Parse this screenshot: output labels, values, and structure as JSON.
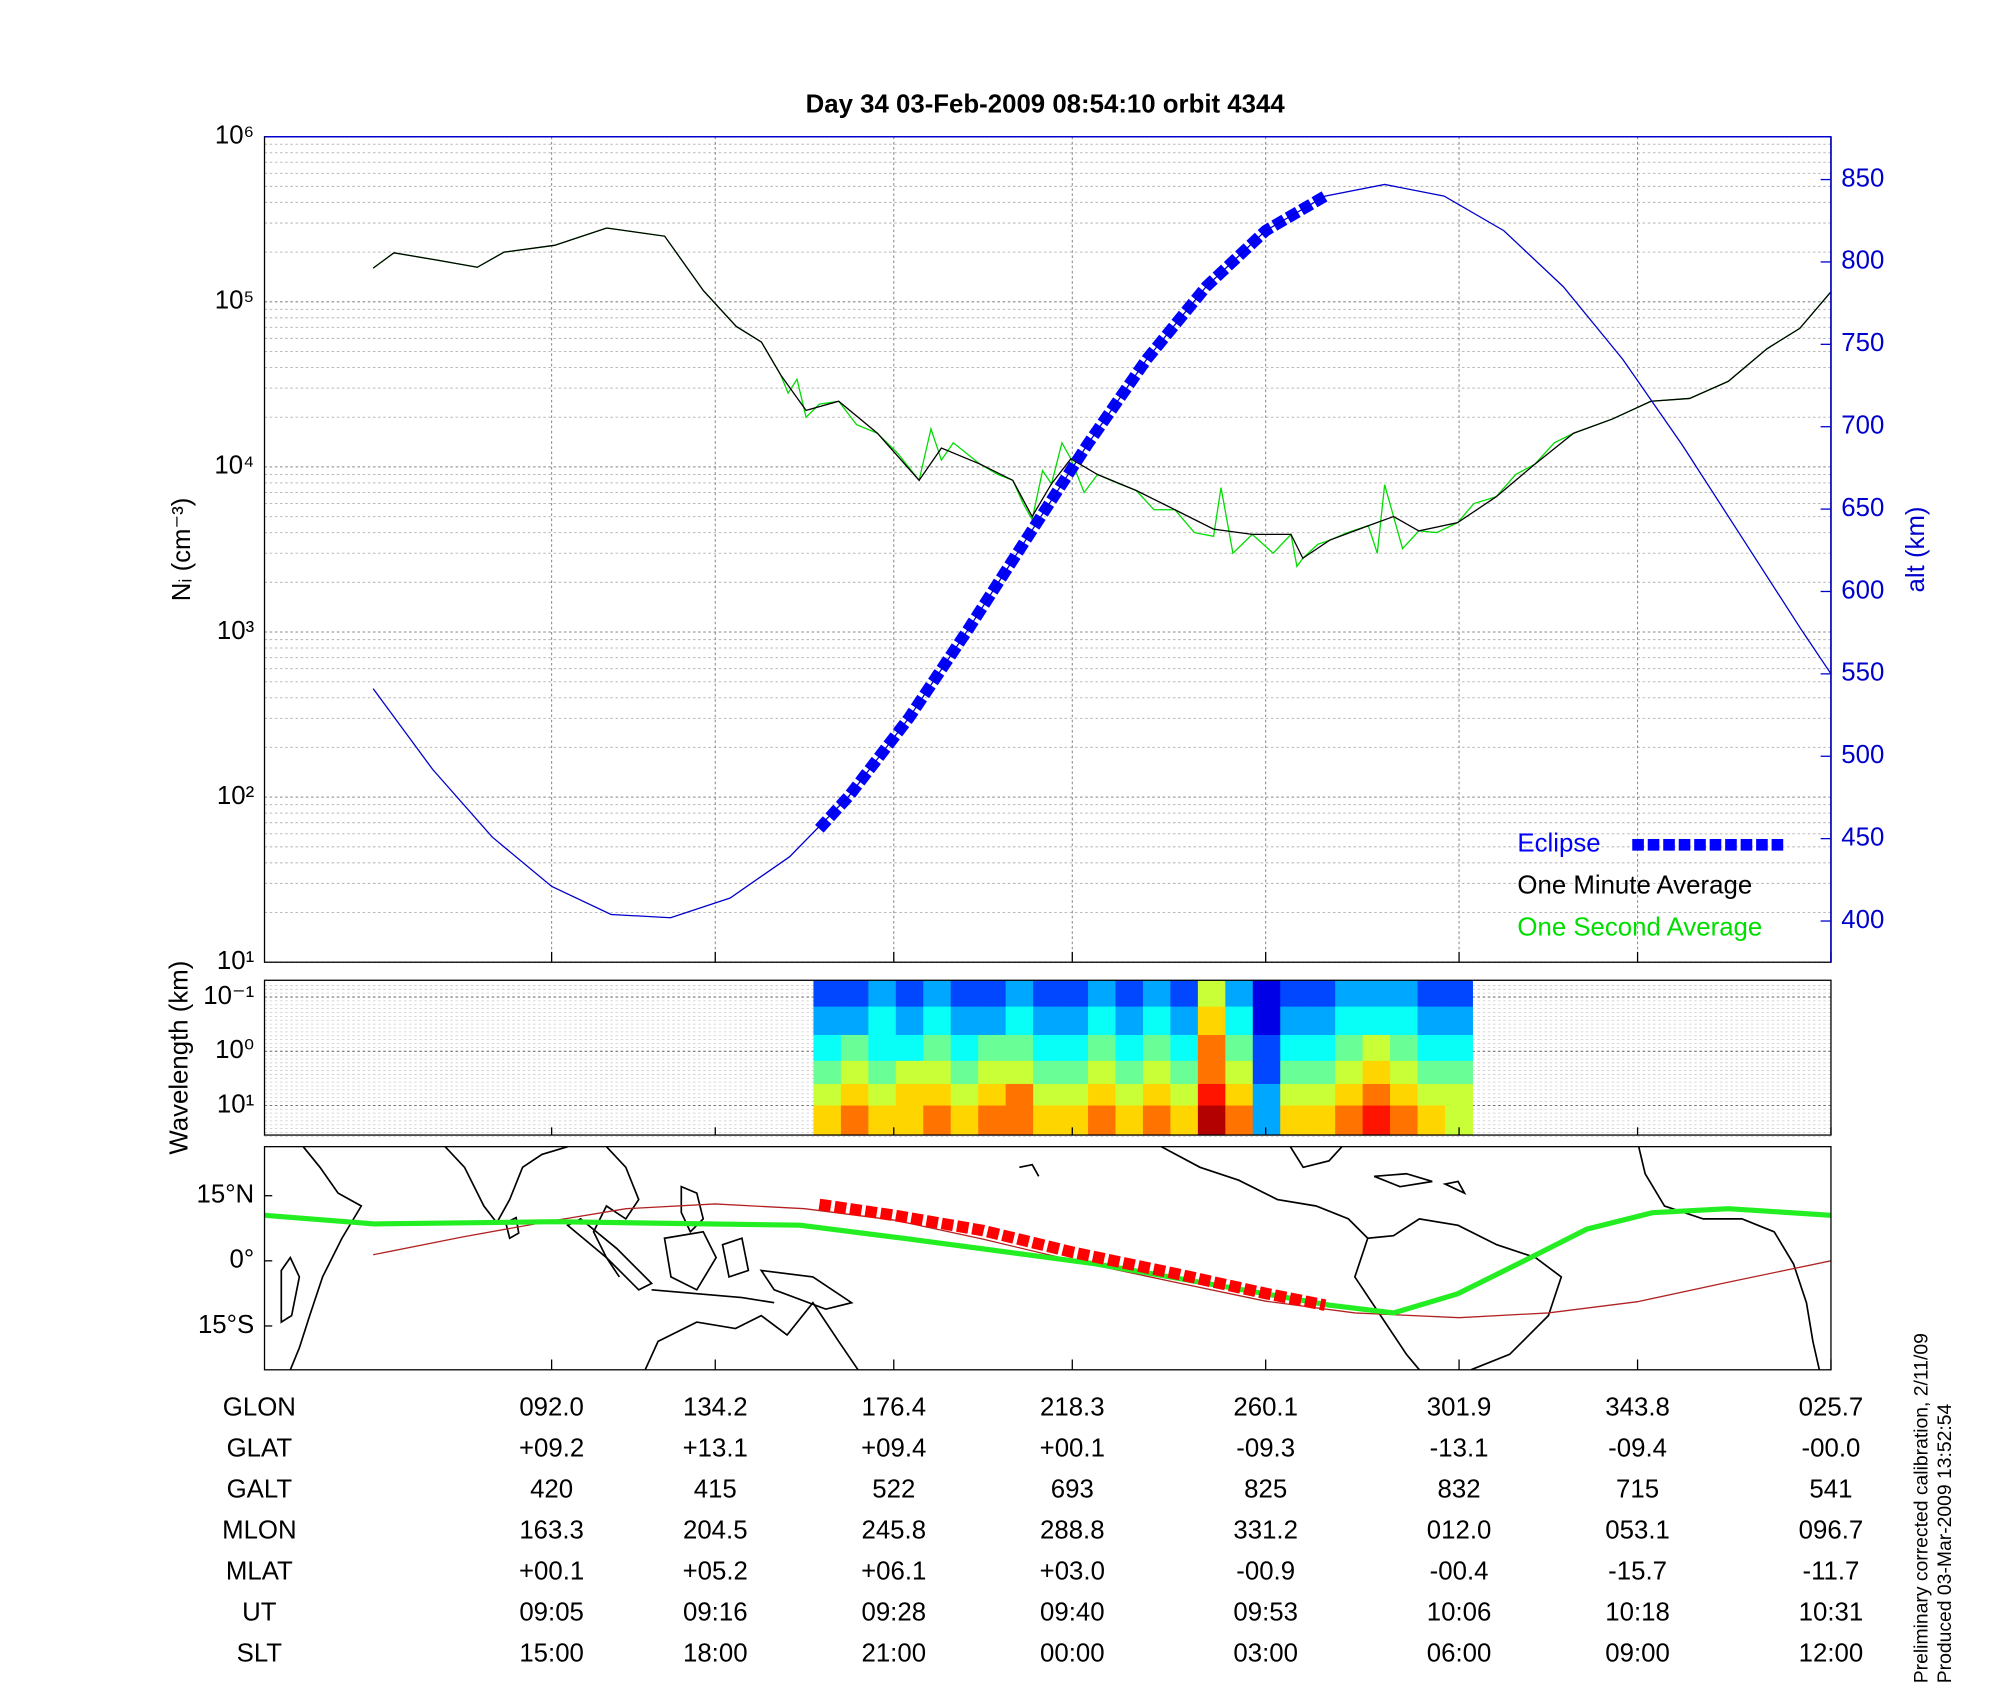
{
  "chart_data": [
    {
      "type": "line",
      "title": "Day 34  03-Feb-2009 08:54:10   orbit 4344",
      "ylabel": "Nᵢ (cm⁻³)",
      "y2label": "alt (km)",
      "log_y": true,
      "grid": true,
      "legend": "lower right",
      "xlim": [
        525.7,
        631
      ],
      "xticks": [
        545,
        556,
        568,
        580,
        593,
        606,
        618,
        631
      ],
      "ylim": [
        10,
        1000000
      ],
      "yticks": [
        {
          "value": 10,
          "label": "10¹"
        },
        {
          "value": 100,
          "label": "10²"
        },
        {
          "value": 1000,
          "label": "10³"
        },
        {
          "value": 10000,
          "label": "10⁴"
        },
        {
          "value": 100000,
          "label": "10⁵"
        },
        {
          "value": 1000000,
          "label": "10⁶"
        }
      ],
      "yminorticks": [
        20,
        30,
        40,
        50,
        60,
        70,
        80,
        90,
        200,
        300,
        400,
        500,
        600,
        700,
        800,
        900,
        2000,
        3000,
        4000,
        5000,
        6000,
        7000,
        8000,
        9000,
        20000,
        30000,
        40000,
        50000,
        60000,
        70000,
        80000,
        90000,
        200000,
        300000,
        400000,
        500000,
        600000,
        700000,
        800000,
        900000
      ],
      "y2lim": [
        375,
        876
      ],
      "y2ticks": [
        400,
        450,
        500,
        550,
        600,
        650,
        700,
        750,
        800,
        850
      ],
      "y2color": "#0000cc",
      "series": [
        {
          "color": "#0000cc",
          "axis": "y2",
          "x": [
            533,
            537,
            541,
            545,
            549,
            553,
            557,
            561,
            565,
            569,
            573,
            577,
            581,
            585,
            589,
            593,
            597,
            601,
            605,
            609,
            613,
            617,
            621,
            625,
            629,
            631
          ],
          "values": [
            541,
            492,
            451,
            421,
            404,
            402,
            414,
            439,
            476,
            523,
            577,
            633,
            689,
            741,
            785,
            819,
            840,
            847,
            840,
            819,
            785,
            741,
            689,
            633,
            577,
            550
          ]
        },
        {
          "name": "Eclipse",
          "color": "#0000ff",
          "axis": "y2",
          "line_style": "dashed",
          "x": [
            563,
            565,
            569,
            573,
            577,
            581,
            585,
            589,
            593,
            597
          ],
          "values": [
            456,
            476,
            523,
            577,
            633,
            689,
            741,
            785,
            819,
            840
          ]
        },
        {
          "name": "One Minute Average",
          "color": "#000000",
          "x": [
            533,
            534.4,
            537.4,
            540,
            541.8,
            545.2,
            548.7,
            552.6,
            555.2,
            557.4,
            559.1,
            560.4,
            562.1,
            564.3,
            566.9,
            569.7,
            571.2,
            573.8,
            576,
            577.3,
            578.6,
            579.9,
            581.7,
            584.3,
            586.9,
            589.5,
            592.1,
            594.7,
            595.5,
            597.3,
            599.9,
            601.6,
            603.3,
            605.9,
            608.5,
            611.1,
            613.7,
            616.3,
            618.9,
            621.5,
            624.1,
            626.7,
            628.9,
            631
          ],
          "values": [
            160000,
            198000,
            178000,
            162000,
            200000,
            220000,
            280000,
            250000,
            117000,
            71000,
            57000,
            36000,
            22000,
            25000,
            16000,
            8300,
            13000,
            10400,
            8300,
            5000,
            7900,
            11200,
            9000,
            7200,
            5500,
            4200,
            3900,
            3900,
            2800,
            3600,
            4400,
            5000,
            4100,
            4600,
            6600,
            10400,
            16000,
            19500,
            25000,
            26000,
            33000,
            52000,
            69000,
            115000
          ]
        },
        {
          "name": "One Second Average",
          "color": "#00dd00",
          "x": [
            533,
            534.4,
            537.4,
            540,
            541.8,
            545.2,
            548.7,
            552.6,
            555.2,
            557.4,
            559.1,
            560.4,
            560.9,
            561.5,
            562.1,
            563.0,
            564.3,
            565.5,
            566.9,
            568.3,
            569.7,
            570.5,
            571.2,
            572.0,
            573.8,
            575.0,
            576.0,
            576.7,
            577.3,
            578.0,
            578.6,
            579.3,
            579.9,
            580.8,
            581.7,
            583.0,
            584.3,
            585.5,
            586.9,
            588.2,
            589.5,
            590.0,
            590.8,
            592.1,
            593.5,
            594.7,
            595.1,
            595.5,
            596.5,
            597.3,
            598.5,
            599.9,
            600.5,
            601.0,
            601.6,
            602.2,
            603.3,
            604.5,
            605.9,
            607.0,
            608.5,
            609.8,
            611.1,
            612.4,
            613.7,
            616.3,
            618.9,
            621.5,
            624.1,
            626.7,
            628.9,
            631
          ],
          "values": [
            160000,
            198000,
            178000,
            162000,
            200000,
            220000,
            280000,
            250000,
            117000,
            71000,
            57000,
            36000,
            28000,
            34000,
            20000,
            24000,
            25000,
            18000,
            16000,
            12000,
            8300,
            17000,
            11000,
            14000,
            10400,
            9000,
            8300,
            6000,
            4800,
            9500,
            7900,
            14000,
            11200,
            7000,
            9000,
            8000,
            7200,
            5500,
            5500,
            4000,
            3800,
            7500,
            3000,
            3900,
            3000,
            3900,
            2500,
            2800,
            3400,
            3600,
            4000,
            4400,
            3000,
            7800,
            5000,
            3200,
            4100,
            4000,
            4600,
            6000,
            6600,
            9000,
            10400,
            14000,
            16000,
            19500,
            25000,
            26000,
            33000,
            52000,
            69000,
            115000
          ]
        }
      ]
    },
    {
      "type": "heatmap",
      "ylabel": "Wavelength (km)",
      "log_y": true,
      "y_reversed": true,
      "ylim": [
        0.049,
        35
      ],
      "yticks": [
        {
          "value": 0.1,
          "label": "10⁻¹"
        },
        {
          "value": 1,
          "label": "10⁰"
        },
        {
          "value": 10,
          "label": "10¹"
        }
      ],
      "time_range": [
        562.6,
        606.9
      ],
      "y_edges": [
        0.049,
        0.15,
        0.5,
        1.5,
        4,
        10,
        35
      ],
      "levels": [
        [
          1,
          1,
          2,
          1,
          2,
          1,
          1,
          2,
          1,
          1,
          2,
          1,
          2,
          1,
          5,
          2,
          0,
          1,
          1,
          2,
          2,
          2,
          1,
          1
        ],
        [
          2,
          2,
          3,
          2,
          3,
          2,
          2,
          3,
          2,
          2,
          3,
          2,
          3,
          2,
          6,
          3,
          0,
          2,
          2,
          3,
          3,
          3,
          2,
          2
        ],
        [
          3,
          4,
          3,
          3,
          4,
          3,
          4,
          4,
          3,
          3,
          4,
          3,
          4,
          3,
          7,
          4,
          1,
          3,
          3,
          4,
          5,
          4,
          3,
          3
        ],
        [
          4,
          5,
          4,
          5,
          5,
          4,
          5,
          5,
          4,
          4,
          5,
          4,
          5,
          4,
          7,
          5,
          1,
          4,
          4,
          5,
          6,
          5,
          4,
          4
        ],
        [
          5,
          6,
          5,
          6,
          6,
          5,
          6,
          7,
          5,
          5,
          6,
          5,
          6,
          5,
          8,
          6,
          2,
          5,
          5,
          6,
          7,
          6,
          5,
          5
        ],
        [
          6,
          7,
          6,
          6,
          7,
          6,
          7,
          7,
          6,
          6,
          7,
          6,
          7,
          6,
          9,
          7,
          2,
          6,
          6,
          7,
          8,
          7,
          6,
          5
        ]
      ]
    },
    {
      "type": "map",
      "ylim": [
        -25.1,
        26.3
      ],
      "yticks": [
        {
          "value": 15,
          "label": "15°N"
        },
        {
          "value": 0,
          "label": "0°"
        },
        {
          "value": -15,
          "label": "15°S"
        }
      ],
      "series": [
        {
          "color": "#b22222",
          "x": [
            533,
            539,
            545,
            550,
            556,
            562,
            568,
            574,
            580,
            587,
            593,
            599,
            606,
            612,
            618,
            624,
            631
          ],
          "values": [
            1.4,
            5.5,
            9.2,
            12.0,
            13.1,
            12.0,
            9.4,
            5.0,
            0.1,
            -5.0,
            -9.3,
            -12.0,
            -13.1,
            -12.0,
            -9.4,
            -5.0,
            0.0
          ]
        },
        {
          "color": "#22ee22",
          "x": [
            525.7,
            533.1,
            545.2,
            561.7,
            568.6,
            581.6,
            597.3,
            601.6,
            605.9,
            610.3,
            614.6,
            619.0,
            624.1,
            631.0
          ],
          "values": [
            10.5,
            8.5,
            9,
            8.2,
            5.2,
            -0.7,
            -10.2,
            -12,
            -7.6,
            -0.1,
            7.3,
            11.1,
            12,
            10.5
          ]
        },
        {
          "color": "#ff0000",
          "line_style": "dashed",
          "x": [
            563,
            568,
            574,
            580,
            587,
            593,
            597
          ],
          "values": [
            13.0,
            10.5,
            7,
            2,
            -3,
            -7.5,
            -10.2
          ]
        }
      ]
    }
  ],
  "ephemeris": {
    "rows": [
      {
        "name": "GLON",
        "values": [
          "092.0",
          "134.2",
          "176.4",
          "218.3",
          "260.1",
          "301.9",
          "343.8",
          "025.7"
        ]
      },
      {
        "name": "GLAT",
        "values": [
          "+09.2",
          "+13.1",
          "+09.4",
          "+00.1",
          "-09.3",
          "-13.1",
          "-09.4",
          "-00.0"
        ]
      },
      {
        "name": "GALT",
        "values": [
          "420",
          "415",
          "522",
          "693",
          "825",
          "832",
          "715",
          "541"
        ]
      },
      {
        "name": "MLON",
        "values": [
          "163.3",
          "204.5",
          "245.8",
          "288.8",
          "331.2",
          "012.0",
          "053.1",
          "096.7"
        ]
      },
      {
        "name": "MLAT",
        "values": [
          "+00.1",
          "+05.2",
          "+06.1",
          "+03.0",
          "-00.9",
          "-00.4",
          "-15.7",
          "-11.7"
        ]
      },
      {
        "name": "UT",
        "values": [
          "09:05",
          "09:16",
          "09:28",
          "09:40",
          "09:53",
          "10:06",
          "10:18",
          "10:31"
        ]
      },
      {
        "name": "SLT",
        "values": [
          "15:00",
          "18:00",
          "21:00",
          "00:00",
          "03:00",
          "06:00",
          "09:00",
          "12:00"
        ]
      }
    ]
  },
  "footer": [
    "Preliminary corrected calibration, 2/11/09",
    "Produced 03-Mar-2009 13:52:54"
  ]
}
